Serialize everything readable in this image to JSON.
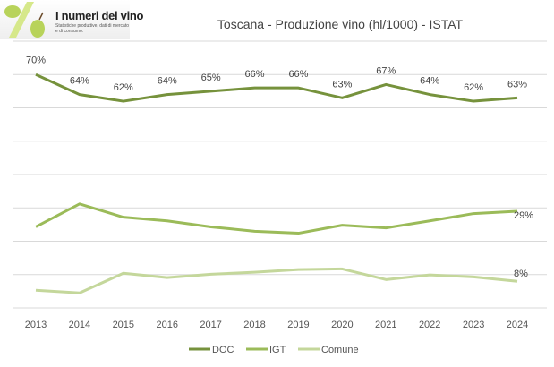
{
  "logo": {
    "title": "I numeri del vino",
    "subtitle": "Statistiche produttive, dati di mercato e di consumo."
  },
  "chart_data": {
    "type": "line",
    "title": "Toscana - Produzione vino (hl/1000) - ISTAT",
    "x": [
      "2013",
      "2014",
      "2015",
      "2016",
      "2017",
      "2018",
      "2019",
      "2020",
      "2021",
      "2022",
      "2023",
      "2024"
    ],
    "ylim": [
      0,
      80
    ],
    "grid": true,
    "legend": "bottom",
    "xlabel": "",
    "ylabel": "",
    "series": [
      {
        "name": "DOC",
        "color": "#76923c",
        "values": [
          70,
          64,
          62,
          64,
          65,
          66,
          66,
          63,
          67,
          64,
          62,
          63
        ],
        "labels": [
          "70%",
          "64%",
          "62%",
          "64%",
          "65%",
          "66%",
          "66%",
          "63%",
          "67%",
          "64%",
          "62%",
          "63%"
        ]
      },
      {
        "name": "IGT",
        "color": "#9bbb59",
        "values": [
          24.3,
          31.2,
          27.2,
          26.1,
          24.3,
          23,
          22.4,
          24.8,
          24,
          26.1,
          28.3,
          29
        ],
        "labels": [
          "",
          "",
          "",
          "",
          "",
          "",
          "",
          "",
          "",
          "",
          "",
          "29%"
        ]
      },
      {
        "name": "Comune",
        "color": "#c4d79b",
        "values": [
          5.3,
          4.5,
          10.4,
          9.1,
          10.1,
          10.7,
          11.5,
          11.7,
          8.5,
          9.9,
          9.3,
          8
        ],
        "labels": [
          "",
          "",
          "",
          "",
          "",
          "",
          "",
          "",
          "",
          "",
          "",
          "8%"
        ]
      }
    ]
  }
}
